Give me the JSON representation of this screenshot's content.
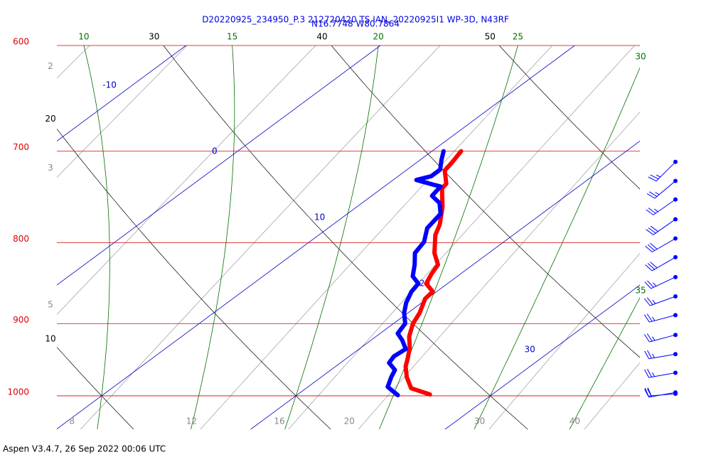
{
  "title": "D20220925_234950_P.3 212720420 TS IAN, 20220925I1 WP-3D, N43RF",
  "subtitle": "N16.7748 W80.7864",
  "footer": "Aspen V3.4.7, 26 Sep 2022  00:06 UTC",
  "chart_data": {
    "type": "skewt",
    "log_y": true,
    "ylim": [
      600,
      1050
    ],
    "yticks": [
      600,
      700,
      800,
      900,
      1000
    ],
    "xlim": [
      7.7,
      37.7
    ],
    "isotherms": [
      -10,
      0,
      10,
      20,
      30
    ],
    "dry_adiabats": [
      10,
      20,
      30,
      40,
      50
    ],
    "moist_adiabats": [
      10,
      15,
      20,
      25,
      30,
      35
    ],
    "mixing_ratios": [
      2,
      3,
      5,
      8,
      12,
      16,
      20,
      30,
      40
    ],
    "series": [
      {
        "color": "#ff0000",
        "pressure": [
          700,
          711,
          720,
          734,
          739,
          759,
          779,
          791,
          812,
          826,
          837,
          849,
          859,
          868,
          886,
          900,
          917,
          932,
          948,
          958,
          973,
          989,
          998
        ],
        "values": [
          11.5,
          11.8,
          12.0,
          13.0,
          13.1,
          14.4,
          15.5,
          16.0,
          17.2,
          18.2,
          18.5,
          18.9,
          19.8,
          19.9,
          20.6,
          21.0,
          21.7,
          22.5,
          23.2,
          23.6,
          24.4,
          25.4,
          26.8
        ]
      },
      {
        "color": "#0000ff",
        "pressure": [
          700,
          709,
          719,
          726,
          730,
          735,
          737,
          747,
          755,
          767,
          783,
          799,
          812,
          826,
          840,
          849,
          859,
          873,
          886,
          900,
          913,
          922,
          934,
          944,
          953,
          963,
          973,
          987,
          999
        ],
        "values": [
          10.6,
          11.1,
          11.7,
          11.7,
          11.2,
          12.4,
          12.9,
          13.1,
          14.0,
          14.8,
          15.1,
          15.9,
          16.2,
          17.0,
          17.7,
          18.5,
          18.7,
          19.2,
          19.8,
          20.6,
          20.9,
          21.6,
          22.4,
          22.3,
          22.5,
          23.3,
          23.6,
          24.1,
          25.2
        ]
      }
    ],
    "winds": {
      "pressure": [
        711,
        731,
        751,
        773,
        795,
        817,
        841,
        865,
        889,
        915,
        941,
        967,
        995,
        997
      ],
      "direction": [
        225,
        230,
        235,
        235,
        240,
        240,
        245,
        250,
        255,
        255,
        260,
        260,
        260,
        265
      ],
      "speed": [
        25,
        25,
        25,
        30,
        30,
        30,
        25,
        25,
        25,
        25,
        25,
        25,
        20,
        20
      ]
    }
  }
}
